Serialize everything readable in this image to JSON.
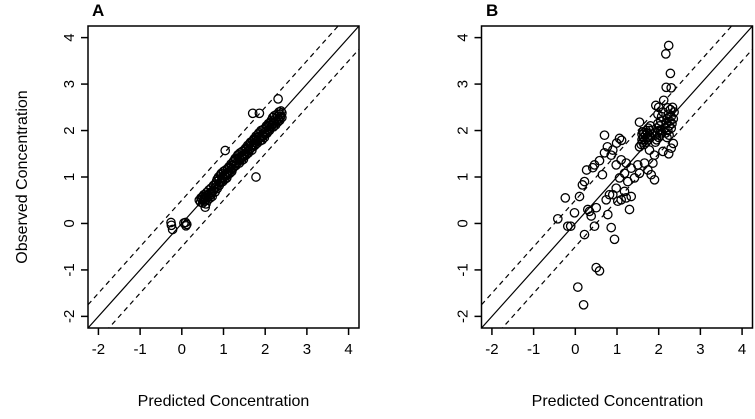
{
  "figure": {
    "background_color": "#ffffff",
    "foreground_color": "#000000",
    "marker": "open-circle",
    "marker_color": "#000000"
  },
  "chart_data": [
    {
      "type": "scatter",
      "panel_label": "A",
      "xlabel": "Predicted Concentration",
      "ylabel": "Observed Concentration",
      "xlim": [
        -2.25,
        4.25
      ],
      "ylim": [
        -2.25,
        4.25
      ],
      "xticks": [
        -2,
        -1,
        0,
        1,
        2,
        3,
        4
      ],
      "yticks": [
        -2,
        -1,
        0,
        1,
        2,
        3,
        4
      ],
      "grid": false,
      "legend": false,
      "reference_lines": [
        {
          "style": "solid",
          "slope": 1,
          "intercept": 0
        },
        {
          "style": "dashed",
          "slope": 1,
          "intercept": 0.5
        },
        {
          "style": "dashed",
          "slope": 1,
          "intercept": -0.5
        }
      ],
      "points": [
        [
          -0.26,
          0.02
        ],
        [
          -0.25,
          -0.04
        ],
        [
          -0.22,
          -0.13
        ],
        [
          0.05,
          0.01
        ],
        [
          0.09,
          0.02
        ],
        [
          0.12,
          -0.02
        ],
        [
          0.1,
          -0.05
        ],
        [
          0.42,
          0.5
        ],
        [
          0.45,
          0.46
        ],
        [
          0.46,
          0.55
        ],
        [
          0.48,
          0.52
        ],
        [
          0.5,
          0.44
        ],
        [
          0.5,
          0.58
        ],
        [
          0.52,
          0.5
        ],
        [
          0.53,
          0.62
        ],
        [
          0.55,
          0.48
        ],
        [
          0.55,
          0.56
        ],
        [
          0.56,
          0.35
        ],
        [
          0.58,
          0.42
        ],
        [
          0.58,
          0.6
        ],
        [
          0.6,
          0.55
        ],
        [
          0.6,
          0.67
        ],
        [
          0.62,
          0.5
        ],
        [
          0.63,
          0.62
        ],
        [
          0.65,
          0.58
        ],
        [
          0.65,
          0.72
        ],
        [
          0.67,
          0.65
        ],
        [
          0.68,
          0.55
        ],
        [
          0.7,
          0.62
        ],
        [
          0.7,
          0.76
        ],
        [
          0.72,
          0.68
        ],
        [
          0.73,
          0.58
        ],
        [
          0.75,
          0.7
        ],
        [
          0.76,
          0.82
        ],
        [
          0.78,
          0.74
        ],
        [
          0.8,
          0.68
        ],
        [
          0.8,
          0.85
        ],
        [
          0.82,
          0.78
        ],
        [
          0.83,
          0.9
        ],
        [
          0.85,
          0.75
        ],
        [
          0.85,
          0.95
        ],
        [
          0.87,
          0.85
        ],
        [
          0.88,
          1.0
        ],
        [
          0.9,
          0.82
        ],
        [
          0.9,
          0.95
        ],
        [
          0.92,
          0.88
        ],
        [
          0.93,
          1.05
        ],
        [
          0.95,
          0.92
        ],
        [
          0.95,
          1.08
        ],
        [
          0.97,
          1.0
        ],
        [
          0.98,
          0.9
        ],
        [
          1.0,
          0.98
        ],
        [
          1.0,
          1.12
        ],
        [
          1.02,
          1.05
        ],
        [
          1.03,
          0.95
        ],
        [
          1.05,
          1.02
        ],
        [
          1.05,
          1.15
        ],
        [
          1.07,
          1.08
        ],
        [
          1.08,
          0.98
        ],
        [
          1.1,
          1.05
        ],
        [
          1.1,
          1.18
        ],
        [
          1.12,
          1.1
        ],
        [
          1.13,
          1.22
        ],
        [
          1.15,
          1.08
        ],
        [
          1.15,
          1.2
        ],
        [
          1.17,
          1.15
        ],
        [
          1.18,
          1.28
        ],
        [
          1.2,
          1.12
        ],
        [
          1.2,
          1.25
        ],
        [
          1.22,
          1.18
        ],
        [
          1.23,
          1.32
        ],
        [
          1.25,
          1.22
        ],
        [
          1.25,
          1.35
        ],
        [
          1.27,
          1.28
        ],
        [
          1.28,
          1.4
        ],
        [
          1.3,
          1.25
        ],
        [
          1.3,
          1.38
        ],
        [
          1.32,
          1.3
        ],
        [
          1.33,
          1.45
        ],
        [
          1.35,
          1.35
        ],
        [
          1.35,
          1.48
        ],
        [
          1.37,
          1.4
        ],
        [
          1.38,
          1.3
        ],
        [
          1.4,
          1.38
        ],
        [
          1.4,
          1.52
        ],
        [
          1.42,
          1.45
        ],
        [
          1.43,
          1.35
        ],
        [
          1.45,
          1.42
        ],
        [
          1.45,
          1.55
        ],
        [
          1.47,
          1.48
        ],
        [
          1.48,
          1.38
        ],
        [
          1.5,
          1.45
        ],
        [
          1.5,
          1.58
        ],
        [
          1.52,
          1.5
        ],
        [
          1.53,
          1.62
        ],
        [
          1.55,
          1.48
        ],
        [
          1.55,
          1.6
        ],
        [
          1.57,
          1.55
        ],
        [
          1.58,
          1.68
        ],
        [
          1.6,
          1.52
        ],
        [
          1.6,
          1.65
        ],
        [
          1.62,
          1.58
        ],
        [
          1.63,
          1.72
        ],
        [
          1.65,
          1.62
        ],
        [
          1.65,
          1.75
        ],
        [
          1.67,
          1.68
        ],
        [
          1.68,
          1.58
        ],
        [
          1.7,
          1.65
        ],
        [
          1.7,
          1.78
        ],
        [
          1.72,
          1.7
        ],
        [
          1.73,
          1.82
        ],
        [
          1.75,
          1.68
        ],
        [
          1.75,
          1.8
        ],
        [
          1.77,
          1.75
        ],
        [
          1.78,
          1.88
        ],
        [
          1.8,
          1.72
        ],
        [
          1.8,
          1.85
        ],
        [
          1.82,
          1.78
        ],
        [
          1.83,
          1.92
        ],
        [
          1.85,
          1.82
        ],
        [
          1.85,
          1.95
        ],
        [
          1.87,
          1.88
        ],
        [
          1.88,
          1.78
        ],
        [
          1.9,
          1.85
        ],
        [
          1.9,
          2.0
        ],
        [
          1.92,
          1.9
        ],
        [
          1.93,
          1.8
        ],
        [
          1.95,
          1.88
        ],
        [
          1.95,
          2.02
        ],
        [
          1.97,
          1.95
        ],
        [
          1.98,
          1.85
        ],
        [
          2.0,
          1.92
        ],
        [
          2.0,
          2.05
        ],
        [
          2.02,
          1.98
        ],
        [
          2.03,
          2.1
        ],
        [
          2.05,
          1.95
        ],
        [
          2.05,
          2.08
        ],
        [
          2.07,
          2.02
        ],
        [
          2.08,
          2.15
        ],
        [
          2.1,
          2.0
        ],
        [
          2.1,
          2.12
        ],
        [
          2.12,
          2.05
        ],
        [
          2.13,
          2.18
        ],
        [
          2.15,
          2.1
        ],
        [
          2.15,
          2.22
        ],
        [
          2.17,
          2.15
        ],
        [
          2.18,
          2.28
        ],
        [
          2.2,
          2.08
        ],
        [
          2.2,
          2.2
        ],
        [
          2.22,
          2.15
        ],
        [
          2.22,
          2.32
        ],
        [
          2.25,
          2.12
        ],
        [
          2.25,
          2.25
        ],
        [
          2.27,
          2.2
        ],
        [
          2.28,
          2.35
        ],
        [
          2.3,
          2.18
        ],
        [
          2.3,
          2.3
        ],
        [
          2.32,
          2.25
        ],
        [
          2.33,
          2.4
        ],
        [
          2.35,
          2.22
        ],
        [
          2.35,
          2.35
        ],
        [
          2.37,
          2.3
        ],
        [
          2.38,
          2.42
        ],
        [
          2.4,
          2.28
        ],
        [
          2.4,
          2.38
        ],
        [
          1.04,
          1.57
        ],
        [
          1.78,
          1.0
        ],
        [
          1.7,
          2.37
        ],
        [
          1.86,
          2.37
        ],
        [
          2.31,
          2.68
        ]
      ]
    },
    {
      "type": "scatter",
      "panel_label": "B",
      "xlabel": "Predicted Concentration",
      "ylabel": "",
      "xlim": [
        -2.25,
        4.25
      ],
      "ylim": [
        -2.25,
        4.25
      ],
      "xticks": [
        -2,
        -1,
        0,
        1,
        2,
        3,
        4
      ],
      "yticks": [
        -2,
        -1,
        0,
        1,
        2,
        3,
        4
      ],
      "grid": false,
      "legend": false,
      "reference_lines": [
        {
          "style": "solid",
          "slope": 1,
          "intercept": 0
        },
        {
          "style": "dashed",
          "slope": 1,
          "intercept": 0.5
        },
        {
          "style": "dashed",
          "slope": 1,
          "intercept": -0.5
        }
      ],
      "points": [
        [
          0.2,
          -1.75
        ],
        [
          0.06,
          -1.37
        ],
        [
          0.5,
          -0.95
        ],
        [
          0.58,
          -1.02
        ],
        [
          0.94,
          -0.34
        ],
        [
          0.86,
          -0.09
        ],
        [
          0.46,
          -0.06
        ],
        [
          0.22,
          -0.24
        ],
        [
          -0.18,
          -0.06
        ],
        [
          -0.11,
          -0.06
        ],
        [
          -0.42,
          0.1
        ],
        [
          -0.24,
          0.55
        ],
        [
          0.1,
          0.58
        ],
        [
          -0.02,
          0.23
        ],
        [
          0.3,
          0.3
        ],
        [
          0.34,
          0.26
        ],
        [
          0.38,
          0.16
        ],
        [
          0.5,
          0.34
        ],
        [
          0.78,
          0.19
        ],
        [
          0.74,
          0.51
        ],
        [
          1.02,
          0.48
        ],
        [
          1.22,
          0.55
        ],
        [
          1.3,
          0.3
        ],
        [
          0.82,
          0.62
        ],
        [
          0.9,
          0.62
        ],
        [
          0.98,
          0.76
        ],
        [
          1.18,
          0.69
        ],
        [
          1.34,
          0.58
        ],
        [
          1.1,
          0.51
        ],
        [
          0.17,
          0.83
        ],
        [
          0.22,
          0.9
        ],
        [
          0.27,
          1.15
        ],
        [
          0.42,
          1.2
        ],
        [
          0.46,
          1.26
        ],
        [
          0.58,
          1.35
        ],
        [
          0.7,
          1.52
        ],
        [
          0.77,
          1.65
        ],
        [
          0.99,
          1.73
        ],
        [
          0.65,
          1.05
        ],
        [
          1.06,
          1.83
        ],
        [
          0.9,
          1.58
        ],
        [
          0.86,
          1.47
        ],
        [
          1.1,
          1.37
        ],
        [
          0.98,
          1.26
        ],
        [
          1.22,
          1.3
        ],
        [
          1.34,
          1.19
        ],
        [
          1.18,
          1.08
        ],
        [
          1.06,
          0.98
        ],
        [
          1.26,
          0.9
        ],
        [
          1.42,
          0.98
        ],
        [
          1.54,
          1.08
        ],
        [
          1.5,
          1.26
        ],
        [
          1.66,
          1.3
        ],
        [
          1.74,
          1.15
        ],
        [
          1.82,
          1.05
        ],
        [
          1.9,
          0.94
        ],
        [
          1.54,
          1.65
        ],
        [
          1.78,
          1.58
        ],
        [
          1.9,
          1.47
        ],
        [
          1.86,
          1.3
        ],
        [
          2.1,
          1.55
        ],
        [
          0.7,
          1.9
        ],
        [
          1.11,
          1.79
        ],
        [
          1.54,
          2.18
        ],
        [
          1.62,
          1.97
        ],
        [
          1.58,
          1.7
        ],
        [
          1.6,
          1.8
        ],
        [
          1.6,
          1.92
        ],
        [
          1.62,
          1.75
        ],
        [
          1.63,
          1.85
        ],
        [
          1.65,
          1.7
        ],
        [
          1.65,
          1.95
        ],
        [
          1.67,
          1.8
        ],
        [
          1.68,
          1.9
        ],
        [
          1.7,
          1.75
        ],
        [
          1.7,
          2.0
        ],
        [
          1.72,
          1.85
        ],
        [
          1.73,
          1.95
        ],
        [
          1.75,
          1.8
        ],
        [
          1.75,
          2.05
        ],
        [
          1.77,
          1.9
        ],
        [
          1.78,
          2.0
        ],
        [
          1.8,
          1.85
        ],
        [
          1.8,
          2.1
        ],
        [
          1.92,
          1.75
        ],
        [
          1.93,
          1.9
        ],
        [
          1.95,
          1.8
        ],
        [
          1.95,
          2.05
        ],
        [
          1.97,
          1.95
        ],
        [
          1.98,
          2.15
        ],
        [
          2.0,
          1.85
        ],
        [
          2.0,
          2.0
        ],
        [
          2.02,
          2.1
        ],
        [
          2.03,
          1.9
        ],
        [
          2.05,
          2.0
        ],
        [
          2.05,
          2.2
        ],
        [
          2.07,
          2.3
        ],
        [
          2.08,
          1.95
        ],
        [
          2.1,
          2.4
        ],
        [
          1.98,
          2.35
        ],
        [
          1.93,
          2.54
        ],
        [
          2.0,
          2.5
        ],
        [
          2.15,
          2.05
        ],
        [
          2.17,
          1.95
        ],
        [
          2.18,
          2.15
        ],
        [
          2.2,
          1.85
        ],
        [
          2.2,
          2.25
        ],
        [
          2.22,
          2.0
        ],
        [
          2.23,
          2.35
        ],
        [
          2.25,
          1.9
        ],
        [
          2.25,
          2.1
        ],
        [
          2.27,
          2.2
        ],
        [
          2.28,
          2.45
        ],
        [
          2.3,
          2.05
        ],
        [
          2.3,
          2.3
        ],
        [
          2.32,
          2.15
        ],
        [
          2.33,
          2.5
        ],
        [
          2.35,
          2.25
        ],
        [
          2.37,
          2.4
        ],
        [
          2.24,
          1.5
        ],
        [
          2.35,
          1.72
        ],
        [
          2.3,
          1.62
        ],
        [
          2.24,
          3.83
        ],
        [
          2.17,
          3.65
        ],
        [
          2.28,
          3.23
        ],
        [
          2.18,
          2.93
        ],
        [
          2.3,
          2.92
        ],
        [
          2.12,
          2.65
        ],
        [
          2.22,
          2.49
        ]
      ]
    }
  ]
}
